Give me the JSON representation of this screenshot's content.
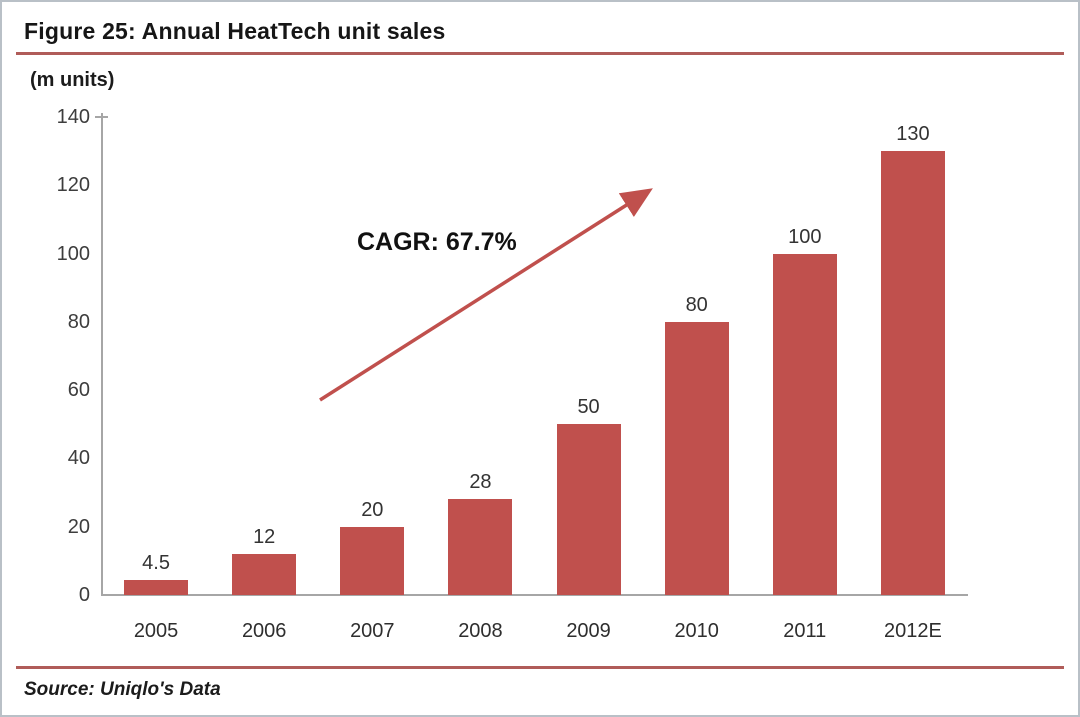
{
  "figure": {
    "title": "Figure 25: Annual HeatTech unit sales",
    "units_label": "(m units)",
    "source": "Source: Uniqlo's Data"
  },
  "chart_data": {
    "type": "bar",
    "title": "Figure 25: Annual HeatTech unit sales",
    "categories": [
      "2005",
      "2006",
      "2007",
      "2008",
      "2009",
      "2010",
      "2011",
      "2012E"
    ],
    "values": [
      4.5,
      12,
      20,
      28,
      50,
      80,
      100,
      130
    ],
    "value_labels": [
      "4.5",
      "12",
      "20",
      "28",
      "50",
      "80",
      "100",
      "130"
    ],
    "xlabel": "",
    "ylabel": "(m units)",
    "ylim": [
      0,
      140
    ],
    "yticks": [
      0,
      20,
      40,
      60,
      80,
      100,
      120,
      140
    ],
    "grid": false,
    "legend": false,
    "annotation": {
      "text": "CAGR: 67.7%",
      "arrow": true
    },
    "source": "Source: Uniqlo's Data"
  },
  "colors": {
    "bar": "#c0504d",
    "arrow": "#c0504d",
    "accent_rule": "#b05c59",
    "axis": "#a6a6a6",
    "border": "#b9c0c7"
  }
}
